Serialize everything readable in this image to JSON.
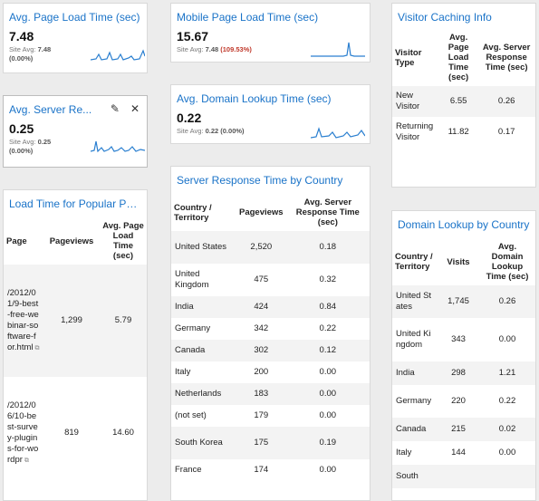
{
  "avg_page_load": {
    "title": "Avg. Page Load Time (sec)",
    "value": "7.48",
    "site_avg_label": "Site Avg:",
    "site_avg_value": "7.48",
    "delta": "(0.00%)"
  },
  "mobile_page_load": {
    "title": "Mobile Page Load Time (sec)",
    "value": "15.67",
    "site_avg_label": "Site Avg:",
    "site_avg_value": "7.48",
    "delta": "(109.53%)"
  },
  "avg_server_response": {
    "title": "Avg. Server Re...",
    "value": "0.25",
    "site_avg_label": "Site Avg:",
    "site_avg_value": "0.25",
    "delta": "(0.00%)",
    "edit_icon": "pencil-icon",
    "close_icon": "close-icon"
  },
  "avg_domain_lookup": {
    "title": "Avg. Domain Lookup Time (sec)",
    "value": "0.22",
    "site_avg_label": "Site Avg:",
    "site_avg_value": "0.22",
    "delta": "(0.00%)"
  },
  "visitor_caching": {
    "title": "Visitor Caching Info",
    "headers": [
      "Visitor Type",
      "Avg. Page Load Time (sec)",
      "Avg. Server Response Time (sec)"
    ],
    "rows": [
      {
        "type": "New Visitor",
        "load": "6.55",
        "server": "0.26"
      },
      {
        "type": "Returning Visitor",
        "load": "11.82",
        "server": "0.17"
      }
    ]
  },
  "load_popular_pages": {
    "title": "Load Time for Popular Pa...",
    "headers": [
      "Page",
      "Pageviews",
      "Avg. Page Load Time (sec)"
    ],
    "rows": [
      {
        "page": "/2012/01/9-best-free-webinar-software-for.html",
        "pageviews": "1,299",
        "load": "5.79"
      },
      {
        "page": "/2012/06/10-best-survey-plugins-for-wordpr",
        "pageviews": "819",
        "load": "14.60"
      }
    ]
  },
  "server_by_country": {
    "title": "Server Response Time by Country",
    "headers": [
      "Country / Territory",
      "Pageviews",
      "Avg. Server Response Time (sec)"
    ],
    "rows": [
      {
        "country": "United States",
        "pageviews": "2,520",
        "time": "0.18"
      },
      {
        "country": "United Kingdom",
        "pageviews": "475",
        "time": "0.32"
      },
      {
        "country": "India",
        "pageviews": "424",
        "time": "0.84"
      },
      {
        "country": "Germany",
        "pageviews": "342",
        "time": "0.22"
      },
      {
        "country": "Canada",
        "pageviews": "302",
        "time": "0.12"
      },
      {
        "country": "Italy",
        "pageviews": "200",
        "time": "0.00"
      },
      {
        "country": "Netherlands",
        "pageviews": "183",
        "time": "0.00"
      },
      {
        "country": "(not set)",
        "pageviews": "179",
        "time": "0.00"
      },
      {
        "country": "South Korea",
        "pageviews": "175",
        "time": "0.19"
      },
      {
        "country": "France",
        "pageviews": "174",
        "time": "0.00"
      }
    ]
  },
  "domain_by_country": {
    "title": "Domain Lookup by Country",
    "headers": [
      "Country / Territory",
      "Visits",
      "Avg. Domain Lookup Time (sec)"
    ],
    "rows": [
      {
        "country": "United States",
        "visits": "1,745",
        "time": "0.26"
      },
      {
        "country": "United Kingdom",
        "visits": "343",
        "time": "0.00"
      },
      {
        "country": "India",
        "visits": "298",
        "time": "1.21"
      },
      {
        "country": "Germany",
        "visits": "220",
        "time": "0.22"
      },
      {
        "country": "Canada",
        "visits": "215",
        "time": "0.02"
      },
      {
        "country": "Italy",
        "visits": "144",
        "time": "0.00"
      },
      {
        "country": "South",
        "visits": "",
        "time": ""
      }
    ]
  }
}
